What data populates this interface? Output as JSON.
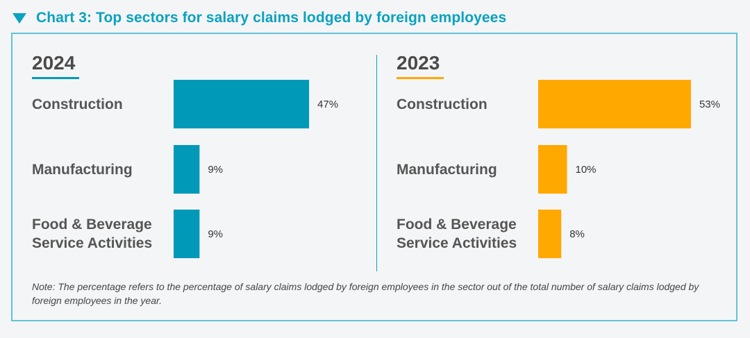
{
  "header": {
    "title": "Chart 3: Top sectors for salary claims lodged by foreign employees"
  },
  "chart_data": [
    {
      "type": "bar",
      "orientation": "horizontal",
      "title": "2024",
      "color": "#0099b8",
      "categories": [
        "Construction",
        "Manufacturing",
        "Food & Beverage Service Activities"
      ],
      "values": [
        47,
        9,
        9
      ],
      "value_labels": [
        "47%",
        "9%",
        "9%"
      ],
      "unit": "%",
      "xlim": [
        0,
        60
      ]
    },
    {
      "type": "bar",
      "orientation": "horizontal",
      "title": "2023",
      "color": "#ffa800",
      "categories": [
        "Construction",
        "Manufacturing",
        "Food & Beverage Service Activities"
      ],
      "values": [
        53,
        10,
        8
      ],
      "value_labels": [
        "53%",
        "10%",
        "8%"
      ],
      "unit": "%",
      "xlim": [
        0,
        60
      ]
    }
  ],
  "category_lines": [
    [
      "Construction"
    ],
    [
      "Manufacturing"
    ],
    [
      "Food & Beverage",
      "Service Activities"
    ]
  ],
  "note": "Note: The percentage refers to the percentage of salary claims lodged by foreign employees in the sector out of the total number of salary claims lodged by foreign employees in the year."
}
